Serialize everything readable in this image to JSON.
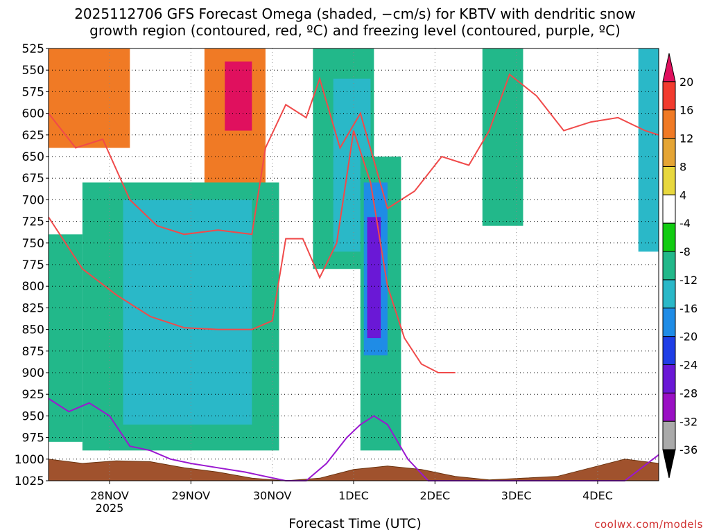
{
  "title": {
    "line1": "2025112706 GFS Forecast Omega (shaded, −cm/s) for KBTV with dendritic snow",
    "line2": "growth region (contoured, red, ºC) and freezing level (contoured, purple, ºC)"
  },
  "xlabel": "Forecast Time (UTC)",
  "credit": "coolwx.com/models",
  "chart_data": {
    "type": "heatmap",
    "title": "2025112706 GFS Forecast Omega (shaded, −cm/s) for KBTV with dendritic snow growth region (contoured, red, ºC) and freezing level (contoured, purple, ºC)",
    "xlabel": "Forecast Time (UTC)",
    "ylabel": "",
    "y_axis": {
      "ticks": [
        525,
        550,
        575,
        600,
        625,
        650,
        675,
        700,
        725,
        750,
        775,
        800,
        825,
        850,
        875,
        900,
        925,
        950,
        975,
        1000,
        1025
      ],
      "range": [
        1025,
        525
      ],
      "unit": "hPa"
    },
    "x_axis": {
      "ticks": [
        {
          "label": "28NOV",
          "sub": "2025",
          "hour": 18
        },
        {
          "label": "29NOV",
          "sub": "",
          "hour": 42
        },
        {
          "label": "30NOV",
          "sub": "",
          "hour": 66
        },
        {
          "label": "1DEC",
          "sub": "",
          "hour": 90
        },
        {
          "label": "2DEC",
          "sub": "",
          "hour": 114
        },
        {
          "label": "3DEC",
          "sub": "",
          "hour": 138
        },
        {
          "label": "4DEC",
          "sub": "",
          "hour": 162
        }
      ],
      "range_hours": [
        0,
        180
      ]
    },
    "grid": true,
    "colorbar": {
      "labels": [
        "20",
        "16",
        "12",
        "8",
        "4",
        "-4",
        "-8",
        "-12",
        "-16",
        "-20",
        "-24",
        "-28",
        "-32",
        "-36"
      ],
      "colors": [
        "#e0105e",
        "#f23b2e",
        "#f07a25",
        "#e5a535",
        "#e8d83e",
        "#ffffff",
        "#12cc12",
        "#22b88a",
        "#2ab8c8",
        "#1f8ce6",
        "#1f3ee6",
        "#6a18d6",
        "#9a10c4",
        "#aaaaaa",
        "#000000"
      ]
    },
    "omega_regions": [
      {
        "t0": 0,
        "t1": 24,
        "p0": 525,
        "p1": 640,
        "value": 12
      },
      {
        "t0": 46,
        "t1": 64,
        "p0": 525,
        "p1": 700,
        "value": 14
      },
      {
        "t0": 52,
        "t1": 60,
        "p0": 540,
        "p1": 620,
        "value": 20
      },
      {
        "t0": 0,
        "t1": 10,
        "p0": 740,
        "p1": 980,
        "value": -8
      },
      {
        "t0": 10,
        "t1": 68,
        "p0": 680,
        "p1": 990,
        "value": -8
      },
      {
        "t0": 22,
        "t1": 60,
        "p0": 700,
        "p1": 960,
        "value": -12
      },
      {
        "t0": 24,
        "t1": 56,
        "p0": 760,
        "p1": 900,
        "value": -14
      },
      {
        "t0": 78,
        "t1": 96,
        "p0": 525,
        "p1": 780,
        "value": -8
      },
      {
        "t0": 84,
        "t1": 95,
        "p0": 560,
        "p1": 760,
        "value": -12
      },
      {
        "t0": 92,
        "t1": 104,
        "p0": 650,
        "p1": 990,
        "value": -8
      },
      {
        "t0": 93,
        "t1": 100,
        "p0": 680,
        "p1": 880,
        "value": -16
      },
      {
        "t0": 94,
        "t1": 98,
        "p0": 720,
        "p1": 860,
        "value": -24
      },
      {
        "t0": 128,
        "t1": 140,
        "p0": 525,
        "p1": 730,
        "value": -8
      },
      {
        "t0": 174,
        "t1": 180,
        "p0": 525,
        "p1": 760,
        "value": -12
      }
    ],
    "series": [
      {
        "name": "-12 °C isotherm",
        "x": [
          0,
          10,
          20,
          30,
          40,
          50,
          60,
          66,
          70,
          75,
          80,
          85,
          90,
          95,
          100,
          105,
          110,
          115,
          120
        ],
        "y": [
          720,
          780,
          810,
          835,
          848,
          850,
          850,
          840,
          745,
          745,
          790,
          750,
          620,
          680,
          800,
          860,
          890,
          900,
          900
        ]
      },
      {
        "name": "-18 °C isotherm",
        "x": [
          0,
          8,
          16,
          24,
          32,
          40,
          50,
          60,
          64,
          70,
          76,
          80,
          86,
          92,
          100,
          108,
          116,
          124,
          130,
          136,
          144,
          152,
          160,
          168,
          176,
          180
        ],
        "y": [
          600,
          640,
          630,
          700,
          730,
          740,
          735,
          740,
          640,
          590,
          605,
          560,
          640,
          600,
          710,
          690,
          650,
          660,
          620,
          555,
          580,
          620,
          610,
          605,
          620,
          625
        ]
      },
      {
        "name": "0 °C freezing level",
        "x": [
          0,
          6,
          12,
          18,
          24,
          30,
          36,
          42,
          50,
          58,
          64,
          70,
          76,
          82,
          88,
          92,
          96,
          100,
          106,
          112,
          120,
          170,
          180
        ],
        "y": [
          930,
          945,
          935,
          950,
          985,
          990,
          1000,
          1005,
          1010,
          1015,
          1020,
          1025,
          1025,
          1005,
          975,
          960,
          950,
          960,
          1000,
          1025,
          1025,
          1025,
          995
        ]
      }
    ],
    "terrain_pressure": [
      1000,
      1005,
      1002,
      1003,
      1010,
      1015,
      1022,
      1025,
      1022,
      1012,
      1008,
      1012,
      1020,
      1024,
      1022,
      1020,
      1010,
      1000,
      1005
    ]
  }
}
